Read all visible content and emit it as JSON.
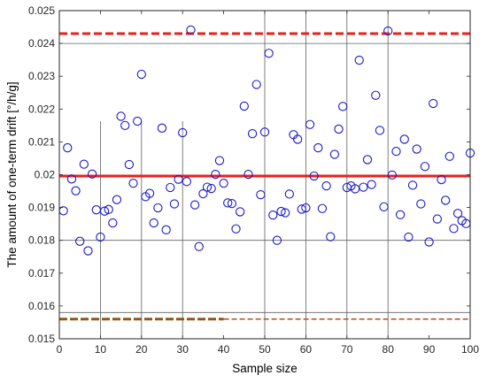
{
  "chart_data": {
    "type": "scatter",
    "xlabel": "Sample size",
    "ylabel": "The amount of one-term drift [°/h/g]",
    "xlim": [
      0,
      100
    ],
    "ylim": [
      0.015,
      0.025
    ],
    "x_ticks": [
      "0",
      "10",
      "20",
      "30",
      "40",
      "50",
      "60",
      "70",
      "80",
      "90",
      "100"
    ],
    "y_ticks": [
      "0.015",
      "0.016",
      "0.017",
      "0.018",
      "0.019",
      "0.02",
      "0.021",
      "0.022",
      "0.023",
      "0.024",
      "0.025"
    ],
    "colors": {
      "markers": "#1a1acc",
      "mean_line": "#e8201c",
      "upper_limit": "#e8201c",
      "lower_limit_short": "#8a5a1a",
      "lower_limit_long": "#a0522d",
      "reference": "#606060"
    },
    "points": [
      [
        1,
        0.0189
      ],
      [
        2,
        0.02082
      ],
      [
        3,
        0.01987
      ],
      [
        4,
        0.01951
      ],
      [
        5,
        0.01797
      ],
      [
        6,
        0.02032
      ],
      [
        7,
        0.01768
      ],
      [
        8,
        0.02002
      ],
      [
        9,
        0.01893
      ],
      [
        10,
        0.0181
      ],
      [
        11,
        0.01889
      ],
      [
        12,
        0.01894
      ],
      [
        13,
        0.01853
      ],
      [
        14,
        0.01924
      ],
      [
        15,
        0.02178
      ],
      [
        16,
        0.0215
      ],
      [
        17,
        0.02031
      ],
      [
        18,
        0.01974
      ],
      [
        19,
        0.02163
      ],
      [
        20,
        0.02306
      ],
      [
        21,
        0.01933
      ],
      [
        22,
        0.01943
      ],
      [
        23,
        0.01853
      ],
      [
        24,
        0.01899
      ],
      [
        25,
        0.02142
      ],
      [
        26,
        0.01832
      ],
      [
        27,
        0.01961
      ],
      [
        28,
        0.01911
      ],
      [
        29,
        0.01986
      ],
      [
        30,
        0.02128
      ],
      [
        31,
        0.01979
      ],
      [
        32,
        0.02441
      ],
      [
        33,
        0.01908
      ],
      [
        34,
        0.01781
      ],
      [
        35,
        0.01942
      ],
      [
        36,
        0.01962
      ],
      [
        37,
        0.01958
      ],
      [
        38,
        0.02001
      ],
      [
        39,
        0.02043
      ],
      [
        40,
        0.01974
      ],
      [
        41,
        0.01914
      ],
      [
        42,
        0.01912
      ],
      [
        43,
        0.01835
      ],
      [
        44,
        0.01887
      ],
      [
        45,
        0.02209
      ],
      [
        46,
        0.02001
      ],
      [
        47,
        0.02125
      ],
      [
        48,
        0.02275
      ],
      [
        49,
        0.01939
      ],
      [
        50,
        0.0213
      ],
      [
        51,
        0.0237
      ],
      [
        52,
        0.01877
      ],
      [
        53,
        0.018
      ],
      [
        54,
        0.01888
      ],
      [
        55,
        0.01884
      ],
      [
        56,
        0.01941
      ],
      [
        57,
        0.02122
      ],
      [
        58,
        0.02108
      ],
      [
        59,
        0.01895
      ],
      [
        60,
        0.01899
      ],
      [
        61,
        0.02153
      ],
      [
        62,
        0.01996
      ],
      [
        63,
        0.02082
      ],
      [
        64,
        0.01897
      ],
      [
        65,
        0.01966
      ],
      [
        66,
        0.01811
      ],
      [
        67,
        0.02062
      ],
      [
        68,
        0.02139
      ],
      [
        69,
        0.02208
      ],
      [
        70,
        0.01961
      ],
      [
        71,
        0.01966
      ],
      [
        72,
        0.01957
      ],
      [
        73,
        0.02349
      ],
      [
        74,
        0.01962
      ],
      [
        75,
        0.02046
      ],
      [
        76,
        0.0197
      ],
      [
        77,
        0.02242
      ],
      [
        78,
        0.02135
      ],
      [
        79,
        0.01902
      ],
      [
        80,
        0.02438
      ],
      [
        81,
        0.01999
      ],
      [
        82,
        0.02071
      ],
      [
        83,
        0.01878
      ],
      [
        84,
        0.02108
      ],
      [
        85,
        0.0181
      ],
      [
        86,
        0.01968
      ],
      [
        87,
        0.02078
      ],
      [
        88,
        0.01911
      ],
      [
        89,
        0.02025
      ],
      [
        90,
        0.01795
      ],
      [
        91,
        0.02217
      ],
      [
        92,
        0.01865
      ],
      [
        93,
        0.01985
      ],
      [
        94,
        0.01922
      ],
      [
        95,
        0.02056
      ],
      [
        96,
        0.01836
      ],
      [
        97,
        0.01882
      ],
      [
        98,
        0.0186
      ],
      [
        99,
        0.01851
      ],
      [
        100,
        0.02066
      ]
    ],
    "mean_line": {
      "y": 0.01996
    },
    "upper_limit": {
      "y": 0.0243
    },
    "lower_limit": {
      "y": 0.0156,
      "dashed_heavy_until_x": 40
    },
    "horizontal_reference_lines": [
      0.0158,
      0.018,
      0.024
    ],
    "vertical_reference_lines": [
      {
        "x": 10,
        "y_top": 0.02163
      },
      {
        "x": 20,
        "y_top": 0.02163
      },
      {
        "x": 30,
        "y_top": 0.02163
      },
      {
        "x": 50,
        "y_top": 0.025
      },
      {
        "x": 60,
        "y_top": 0.025
      },
      {
        "x": 70,
        "y_top": 0.025
      },
      {
        "x": 80,
        "y_top": 0.025
      }
    ]
  }
}
